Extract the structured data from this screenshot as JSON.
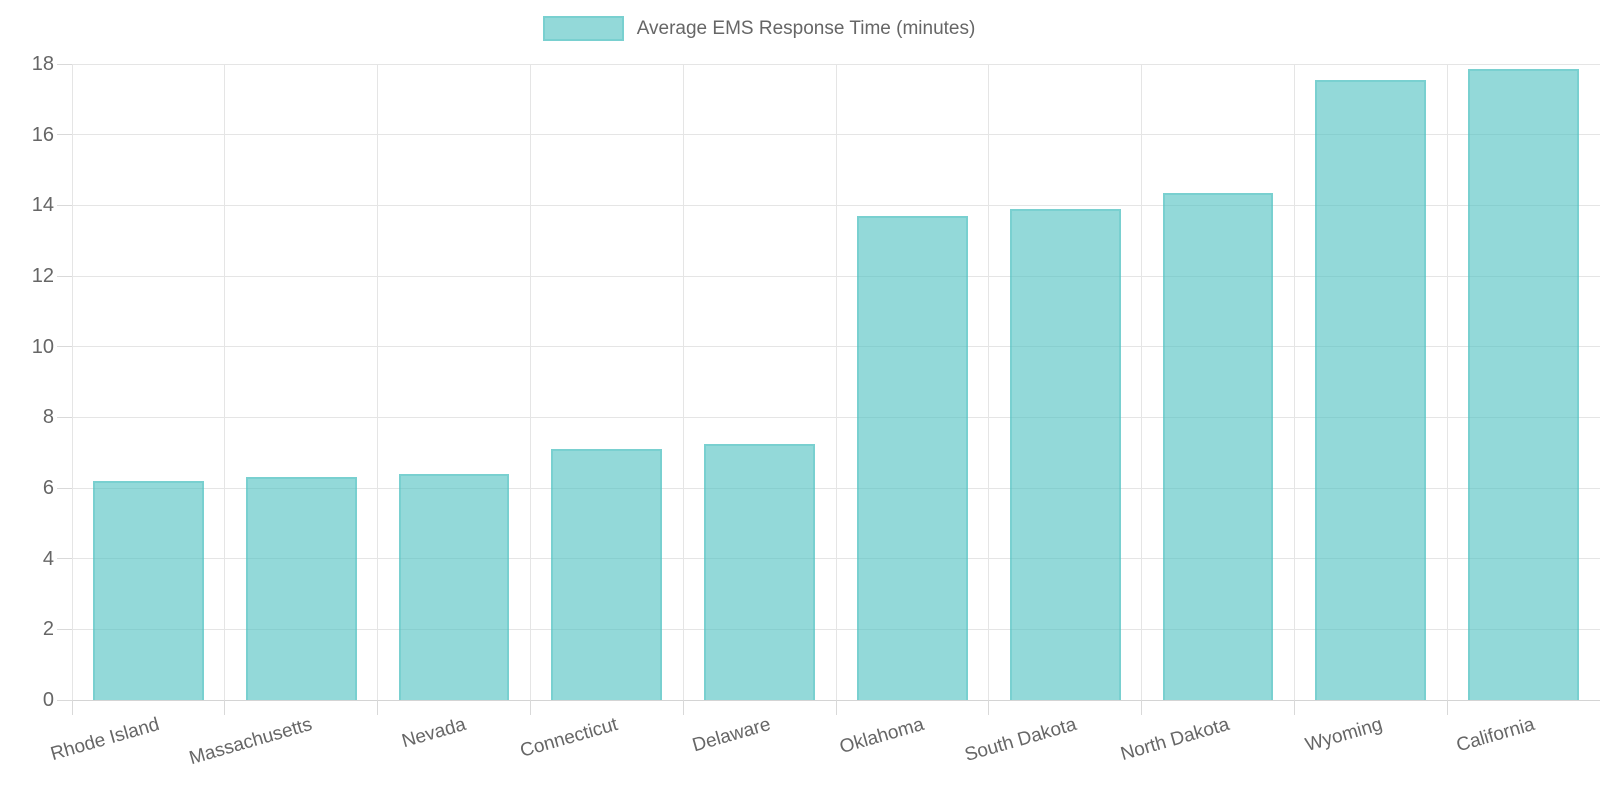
{
  "legend": {
    "label": "Average EMS Response Time (minutes)"
  },
  "chart_data": {
    "type": "bar",
    "title": "Average EMS Response Time (minutes)",
    "categories": [
      "Rhode Island",
      "Massachusetts",
      "Nevada",
      "Connecticut",
      "Delaware",
      "Oklahoma",
      "South Dakota",
      "North Dakota",
      "Wyoming",
      "California"
    ],
    "values": [
      6.2,
      6.3,
      6.4,
      7.1,
      7.25,
      13.7,
      13.9,
      14.35,
      17.55,
      17.85
    ],
    "xlabel": "",
    "ylabel": "",
    "ylim": [
      0,
      18
    ],
    "yticks": [
      0,
      2,
      4,
      6,
      8,
      10,
      12,
      14,
      16,
      18
    ],
    "grid": true,
    "legend_position": "top",
    "bar_fraction_of_slot": 0.725,
    "colors": {
      "bar_fill": "rgba(75,192,192,0.6)",
      "bar_border": "rgba(75,192,192,0.35)",
      "legend_swatch": "rgba(75,192,192,0.6)",
      "gridline": "#e5e5e5",
      "axis_line": "#d4d4d4",
      "tick_mark": "#d9d9d9",
      "label_text": "#666666"
    }
  }
}
